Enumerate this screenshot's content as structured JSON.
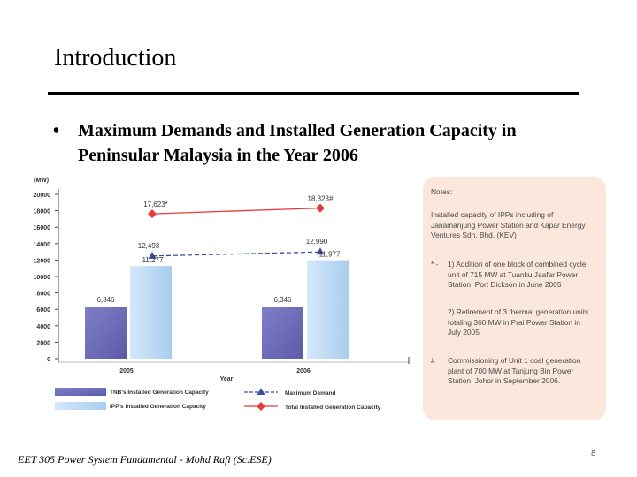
{
  "slide": {
    "title": "Introduction",
    "bullet_marker": "•",
    "bullet": "Maximum Demands and Installed Generation Capacity in Peninsular Malaysia in the Year 2006",
    "footer": "EET 305 Power System Fundamental -   Mohd Rafi (Sc.ESE)",
    "page_number": "8"
  },
  "chart_data": {
    "type": "bar",
    "title": "",
    "ylabel": "(MW)",
    "xlabel": "Year",
    "categories": [
      "2005",
      "2006"
    ],
    "ylim": [
      0,
      20000
    ],
    "yticks": [
      0,
      2000,
      4000,
      6000,
      8000,
      10000,
      12000,
      14000,
      16000,
      18000,
      20000
    ],
    "series": [
      {
        "name": "TNB's Installed Generation Capacity",
        "kind": "bar",
        "color": "#5b5baa",
        "values": [
          6346,
          6346
        ],
        "labels": [
          "6,346",
          "6,346"
        ]
      },
      {
        "name": "IPP's Installed Generation Capacity",
        "kind": "bar",
        "color": "#a8cdee",
        "values": [
          11277,
          11977
        ],
        "labels": [
          "11,277",
          "11,977"
        ]
      },
      {
        "name": "Maximum Demand",
        "kind": "line",
        "color": "#3a4fa0",
        "marker": "triangle",
        "values": [
          12493,
          12990
        ],
        "labels": [
          "12,493",
          "12,990"
        ]
      },
      {
        "name": "Total Installed Generation Capacity",
        "kind": "line",
        "color": "#e83a3a",
        "marker": "diamond",
        "values": [
          17623,
          18323
        ],
        "labels": [
          "17,623*",
          "18,323#"
        ]
      }
    ],
    "legend_position": "bottom"
  },
  "notes": {
    "heading": "Notes:",
    "items": [
      {
        "marker": "",
        "text": "Installed capacity of IPPs including of Janamanjung Power Station and Kapar Energy Ventures Sdn. Bhd. (KEV)"
      },
      {
        "marker": "* -",
        "text": "1) Addition of one block of combined cycle unit of 715 MW at Tuanku Jaafar Power Station, Port Dickson in June 2005"
      },
      {
        "marker": "",
        "text": "2) Retirement of 3 thermal generation units totaling 360 MW in Prai Power Station in July 2005"
      },
      {
        "marker": "#",
        "text": "Commissioning of Unit 1 coal generation plant of 700 MW at Tanjung Bin Power Station, Johor in September 2006."
      }
    ]
  }
}
